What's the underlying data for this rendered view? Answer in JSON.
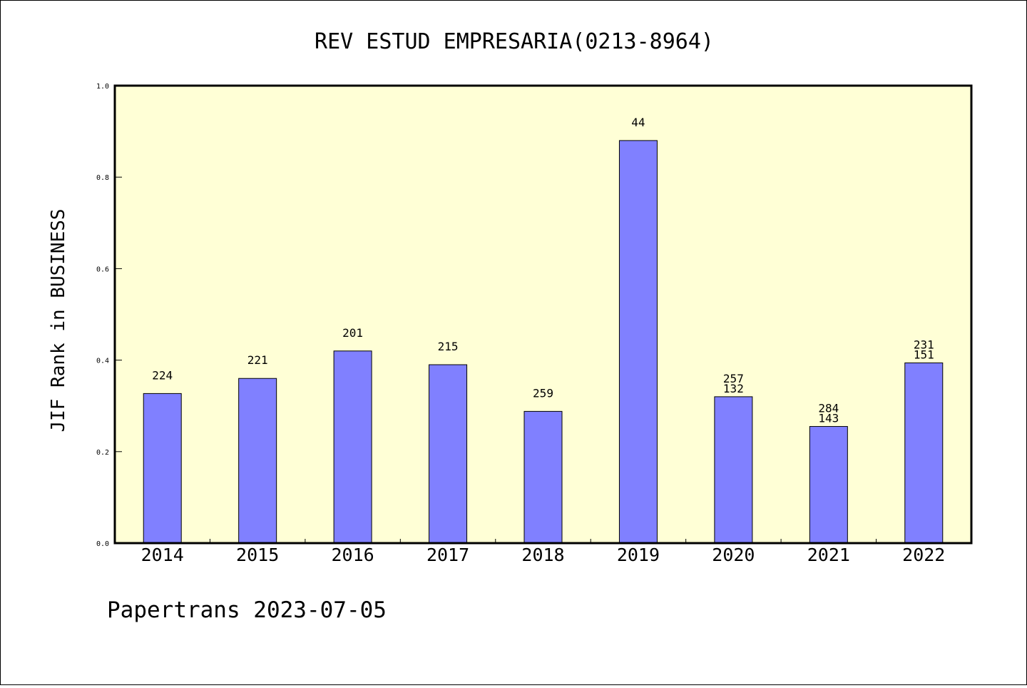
{
  "chart_data": {
    "type": "bar",
    "title": "REV ESTUD EMPRESARIA(0213-8964)",
    "xlabel": "",
    "ylabel": "JIF Rank in BUSINESS",
    "ylim": [
      0,
      1.0
    ],
    "yticks": [
      "0.0",
      "0.2",
      "0.4",
      "0.6",
      "0.8",
      "1.0"
    ],
    "grid": false,
    "legend": "none",
    "categories": [
      "2014",
      "2015",
      "2016",
      "2017",
      "2018",
      "2019",
      "2020",
      "2021",
      "2022"
    ],
    "values": [
      0.327,
      0.36,
      0.42,
      0.39,
      0.288,
      0.88,
      0.32,
      0.255,
      0.394
    ],
    "labels_top": [
      "224",
      "221",
      "201",
      "215",
      "259",
      "44",
      "257",
      "284",
      "231"
    ],
    "labels_second": [
      "",
      "",
      "",
      "",
      "",
      "",
      "132",
      "143",
      "151"
    ],
    "colors": {
      "bar": "#8080ff",
      "plot_bg": "#ffffd6",
      "axis": "#000000"
    }
  },
  "footer": "Papertrans 2023-07-05"
}
